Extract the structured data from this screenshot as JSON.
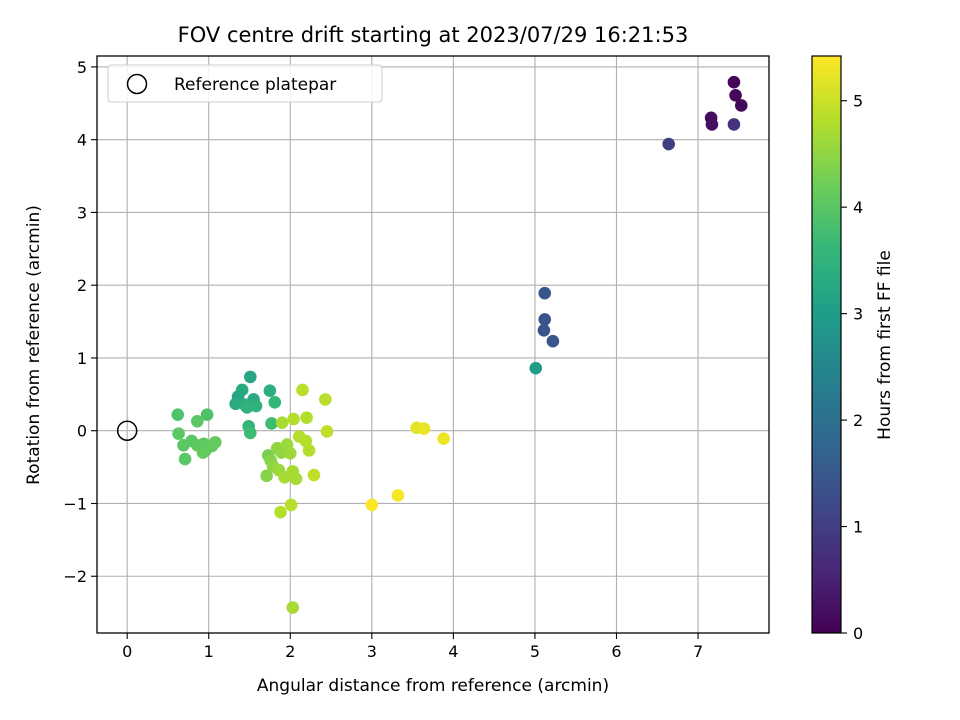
{
  "chart_data": {
    "type": "scatter",
    "title": "FOV centre drift starting at 2023/07/29 16:21:53",
    "xlabel": "Angular distance from reference (arcmin)",
    "ylabel": "Rotation from reference (arcmin)",
    "xlim": [
      -0.37,
      7.87
    ],
    "ylim": [
      -2.78,
      5.15
    ],
    "xticks": [
      0,
      1,
      2,
      3,
      4,
      5,
      6,
      7
    ],
    "yticks": [
      -2,
      -1,
      0,
      1,
      2,
      3,
      4,
      5
    ],
    "grid": true,
    "legend": {
      "location": "top-left",
      "entries": [
        "Reference platepar"
      ]
    },
    "reference_point": {
      "x": 0,
      "y": 0,
      "label": "Reference platepar"
    },
    "colorbar": {
      "label": "Hours from first FF file",
      "colormap": "viridis",
      "range": [
        0,
        5.42
      ],
      "ticks": [
        0,
        1,
        2,
        3,
        4,
        5
      ],
      "colors": [
        "#440154",
        "#482878",
        "#3e4989",
        "#31688e",
        "#26828e",
        "#1f9e89",
        "#35b779",
        "#6ece58",
        "#b5de2b",
        "#fde725"
      ]
    },
    "points": [
      {
        "x": 7.44,
        "y": 4.79,
        "c": 0.05
      },
      {
        "x": 7.46,
        "y": 4.61,
        "c": 0.1
      },
      {
        "x": 7.53,
        "y": 4.47,
        "c": 0.12
      },
      {
        "x": 7.16,
        "y": 4.3,
        "c": 0.15
      },
      {
        "x": 7.17,
        "y": 4.21,
        "c": 0.2
      },
      {
        "x": 7.44,
        "y": 4.21,
        "c": 0.8
      },
      {
        "x": 6.64,
        "y": 3.94,
        "c": 1.0
      },
      {
        "x": 5.12,
        "y": 1.89,
        "c": 1.45
      },
      {
        "x": 5.12,
        "y": 1.53,
        "c": 1.4
      },
      {
        "x": 5.11,
        "y": 1.38,
        "c": 1.4
      },
      {
        "x": 5.22,
        "y": 1.23,
        "c": 1.45
      },
      {
        "x": 5.01,
        "y": 0.86,
        "c": 3.0
      },
      {
        "x": 1.51,
        "y": 0.74,
        "c": 3.2
      },
      {
        "x": 1.41,
        "y": 0.56,
        "c": 3.3
      },
      {
        "x": 1.75,
        "y": 0.55,
        "c": 3.4
      },
      {
        "x": 1.36,
        "y": 0.47,
        "c": 3.2
      },
      {
        "x": 1.55,
        "y": 0.43,
        "c": 3.3
      },
      {
        "x": 1.33,
        "y": 0.37,
        "c": 3.3
      },
      {
        "x": 1.44,
        "y": 0.36,
        "c": 3.4
      },
      {
        "x": 1.58,
        "y": 0.34,
        "c": 3.5
      },
      {
        "x": 1.47,
        "y": 0.32,
        "c": 3.5
      },
      {
        "x": 1.81,
        "y": 0.39,
        "c": 3.6
      },
      {
        "x": 1.49,
        "y": 0.06,
        "c": 3.6
      },
      {
        "x": 1.51,
        "y": -0.03,
        "c": 3.7
      },
      {
        "x": 1.77,
        "y": 0.1,
        "c": 3.7
      },
      {
        "x": 0.62,
        "y": 0.22,
        "c": 3.9
      },
      {
        "x": 0.98,
        "y": 0.22,
        "c": 3.9
      },
      {
        "x": 0.86,
        "y": 0.13,
        "c": 4.0
      },
      {
        "x": 0.63,
        "y": -0.04,
        "c": 4.0
      },
      {
        "x": 0.69,
        "y": -0.2,
        "c": 4.0
      },
      {
        "x": 0.79,
        "y": -0.14,
        "c": 4.0
      },
      {
        "x": 0.86,
        "y": -0.2,
        "c": 4.05
      },
      {
        "x": 0.94,
        "y": -0.18,
        "c": 4.05
      },
      {
        "x": 0.96,
        "y": -0.27,
        "c": 4.1
      },
      {
        "x": 0.93,
        "y": -0.3,
        "c": 4.1
      },
      {
        "x": 1.08,
        "y": -0.16,
        "c": 4.1
      },
      {
        "x": 1.04,
        "y": -0.21,
        "c": 4.1
      },
      {
        "x": 0.71,
        "y": -0.39,
        "c": 4.0
      },
      {
        "x": 1.73,
        "y": -0.34,
        "c": 4.3
      },
      {
        "x": 1.76,
        "y": -0.41,
        "c": 4.4
      },
      {
        "x": 1.71,
        "y": -0.62,
        "c": 4.4
      },
      {
        "x": 1.84,
        "y": -0.24,
        "c": 4.5
      },
      {
        "x": 1.89,
        "y": -0.3,
        "c": 4.5
      },
      {
        "x": 1.79,
        "y": -0.49,
        "c": 4.5
      },
      {
        "x": 1.86,
        "y": -0.54,
        "c": 4.6
      },
      {
        "x": 1.96,
        "y": -0.19,
        "c": 4.6
      },
      {
        "x": 2.0,
        "y": -0.31,
        "c": 4.6
      },
      {
        "x": 2.03,
        "y": -0.56,
        "c": 4.7
      },
      {
        "x": 1.93,
        "y": -0.64,
        "c": 4.7
      },
      {
        "x": 2.07,
        "y": -0.66,
        "c": 4.7
      },
      {
        "x": 1.9,
        "y": 0.11,
        "c": 4.7
      },
      {
        "x": 2.04,
        "y": 0.16,
        "c": 4.8
      },
      {
        "x": 2.11,
        "y": -0.08,
        "c": 4.8
      },
      {
        "x": 2.2,
        "y": 0.18,
        "c": 4.8
      },
      {
        "x": 2.19,
        "y": -0.14,
        "c": 4.8
      },
      {
        "x": 2.23,
        "y": -0.27,
        "c": 4.8
      },
      {
        "x": 2.15,
        "y": 0.56,
        "c": 4.85
      },
      {
        "x": 2.43,
        "y": 0.43,
        "c": 4.85
      },
      {
        "x": 2.45,
        "y": -0.01,
        "c": 4.9
      },
      {
        "x": 2.29,
        "y": -0.61,
        "c": 4.9
      },
      {
        "x": 2.01,
        "y": -1.02,
        "c": 4.85
      },
      {
        "x": 1.88,
        "y": -1.12,
        "c": 4.8
      },
      {
        "x": 2.03,
        "y": -2.43,
        "c": 4.7
      },
      {
        "x": 3.55,
        "y": 0.04,
        "c": 5.2
      },
      {
        "x": 3.64,
        "y": 0.03,
        "c": 5.25
      },
      {
        "x": 3.88,
        "y": -0.11,
        "c": 5.3
      },
      {
        "x": 3.32,
        "y": -0.89,
        "c": 5.35
      },
      {
        "x": 3.0,
        "y": -1.02,
        "c": 5.4
      }
    ]
  }
}
